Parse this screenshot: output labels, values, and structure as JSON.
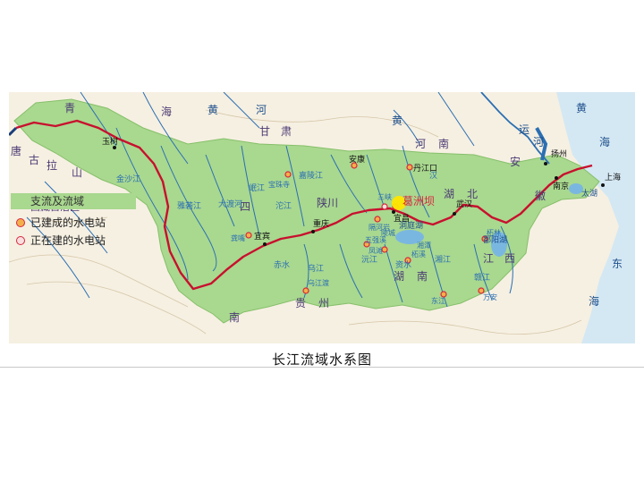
{
  "caption": "长江流域水系图",
  "colors": {
    "basin": "#a9d88f",
    "land": "#f6f0e2",
    "sea": "#d4e8f3",
    "river_main": "#c8102e",
    "tributary": "#2b6fb3",
    "label_blue": "#1e4f8c",
    "label_purple": "#4a3a73",
    "station_built": "#f3b04a",
    "station_ring": "#d7263d"
  },
  "legend": {
    "title": "支流及流域",
    "built_label": "已建成的水电站",
    "building_label": "正在建的水电站"
  },
  "regions": {
    "qinghai_1": "青",
    "qinghai_2": "海",
    "tibet": "西藏自治区",
    "gansu_1": "甘",
    "gansu_2": "肃",
    "shaanxi_1": "陕",
    "shaanxi_2": "西",
    "sichuan_1": "四",
    "sichuan_2": "川",
    "henan_1": "河",
    "henan_2": "南",
    "hubei_1": "湖",
    "hubei_2": "北",
    "hunan_1": "湖",
    "hunan_2": "南",
    "guizhou_1": "贵",
    "guizhou_2": "州",
    "jiangxi_1": "江",
    "jiangxi_2": "西",
    "anhui_1": "安",
    "anhui_2": "徽",
    "jiangsu": "江",
    "yunnan": "南",
    "tanggula_1": "唐",
    "tanggula_2": "古",
    "tanggula_3": "拉",
    "tanggula_4": "山"
  },
  "rivers": {
    "yellow_1": "黄",
    "yellow_2": "河",
    "huang_hai": "黄",
    "hai_1": "海",
    "dong": "东",
    "hai_2": "海",
    "grand_canal_1": "运",
    "grand_canal_2": "河",
    "jialing": "嘉陵江",
    "han": "汉",
    "wu": "乌江",
    "yalong": "雅砻江",
    "dadu": "大渡河",
    "min": "岷江",
    "tuo": "沱江",
    "jinsha": "金沙江",
    "xiang": "湘江",
    "gan": "赣江",
    "yuan": "沅江",
    "zi": "资水",
    "chishui": "赤水"
  },
  "lakes": {
    "dongting": "洞庭湖",
    "poyang": "鄱阳湖",
    "taihu": "太湖"
  },
  "cities": {
    "yushu": "玉树",
    "yibin": "宜宾",
    "chongqing": "重庆",
    "yichang": "宜昌",
    "wuhan": "武汉",
    "nanjing": "南京",
    "yangzhou": "扬州",
    "shanghai": "上海",
    "danjiangkou": "丹江口",
    "anhui_city": "安康",
    "gezhouba": "葛洲坝",
    "sanxia": "三峡",
    "baozhusi": "宝珠寺",
    "wujiangdu": "乌江渡",
    "gongzui": "龚嘴",
    "wuqiangxi": "五强溪",
    "zhexi": "柘溪",
    "zhelin": "柘林",
    "fengtan": "凤滩",
    "dongjiang": "东江",
    "wan_an": "万安",
    "tuxing": "隔河岩",
    "lingjin": "陵城",
    "zhuchi": "湘潭"
  }
}
